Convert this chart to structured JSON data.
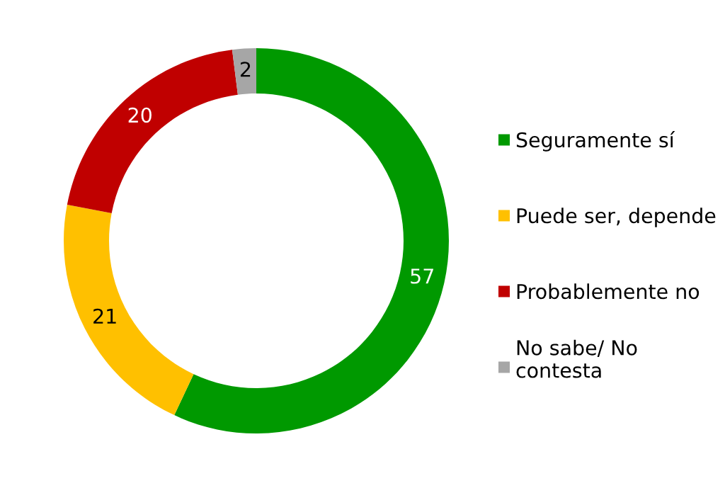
{
  "chart_data": {
    "type": "donut",
    "categories": [
      "Seguramente sí",
      "Puede ser, depende",
      "Probablemente no",
      "No sabe/ No contesta"
    ],
    "values": [
      57,
      21,
      20,
      2
    ],
    "colors": [
      "#009900",
      "#ffc000",
      "#c00000",
      "#a6a6a6"
    ],
    "data_labels": true,
    "legend": "right"
  }
}
